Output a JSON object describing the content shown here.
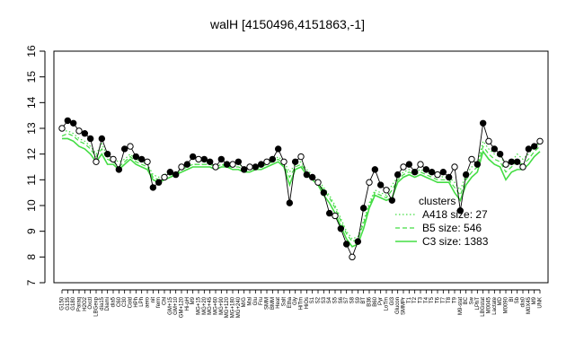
{
  "chart_data": {
    "type": "line",
    "title": "walH [4150496,4151863,-1]",
    "xlabel": "",
    "ylabel": "",
    "ylim": [
      7,
      16
    ],
    "yticks": [
      7,
      8,
      9,
      10,
      11,
      12,
      13,
      14,
      15,
      16
    ],
    "grid": false,
    "legend_placement": "bottom-right",
    "legend_title": "clusters",
    "condition_labels": [
      "G150",
      "G135",
      "G180",
      "Paraq",
      "H2O2",
      "Oxctl",
      "LBGexp",
      "dia15",
      "Diami",
      "dia5",
      "C60",
      "C30",
      "Cold",
      "HPh",
      "LPh",
      "aero",
      "nit",
      "ferm",
      "Chl",
      "GM+15",
      "GM+10",
      "GM+120",
      "Hi-pH",
      "M9",
      "MG+15",
      "MG+20",
      "MG+45",
      "MG+60",
      "MG+90",
      "MG+120",
      "MG+180",
      "MG+240",
      "M/G",
      "Mal",
      "Glu",
      "Fru",
      "SMM",
      "BMM",
      "Heat",
      "Salt",
      "Etha",
      "Gly",
      "HiTm",
      "HiOs",
      "S1",
      "S2",
      "S3",
      "S4",
      "S5",
      "S6",
      "S7",
      "S8",
      "S9",
      "BT",
      "B36",
      "B60",
      "Pyr",
      "LoTm",
      "Gl3",
      "Glucon",
      "SMMPr",
      "T1",
      "T2",
      "T3",
      "T4",
      "T5",
      "T6",
      "T7",
      "T8",
      "T9",
      "M9-stat",
      "BC",
      "Sw",
      "LPhT",
      "LBGstat",
      "M0045",
      "Lactate",
      "MD",
      "M0090",
      "Bl",
      "Sb",
      "dia0",
      "M0X45",
      "M9",
      "UNK"
    ],
    "x": [
      1,
      2,
      3,
      4,
      5,
      6,
      7,
      8,
      9,
      10,
      11,
      12,
      13,
      14,
      15,
      16,
      17,
      18,
      19,
      20,
      21,
      22,
      23,
      24,
      25,
      26,
      27,
      28,
      29,
      30,
      31,
      32,
      33,
      34,
      35,
      36,
      37,
      38,
      39,
      40,
      41,
      42,
      43,
      44,
      45,
      46,
      47,
      48,
      49,
      50,
      51,
      52,
      53,
      54,
      55,
      56,
      57,
      58,
      59,
      60,
      61,
      62,
      63,
      64,
      65,
      66,
      67,
      68,
      69,
      70,
      71,
      72,
      73,
      74,
      75,
      76,
      77,
      78,
      79,
      80,
      81,
      82,
      83,
      84,
      85
    ],
    "series": [
      {
        "name": "A418 size: 27",
        "style": "dotted",
        "color": "#44dd44",
        "values": [
          12.9,
          12.9,
          12.8,
          12.6,
          12.5,
          12.3,
          12.0,
          12.4,
          11.9,
          11.8,
          11.7,
          11.8,
          12.0,
          11.8,
          11.7,
          11.6,
          11.2,
          11.1,
          11.2,
          11.3,
          11.3,
          11.4,
          11.5,
          11.6,
          11.6,
          11.6,
          11.6,
          11.5,
          11.6,
          11.6,
          11.6,
          11.6,
          11.5,
          11.5,
          11.5,
          11.6,
          11.6,
          11.7,
          11.9,
          11.7,
          11.3,
          11.6,
          11.7,
          11.4,
          11.2,
          11.0,
          10.7,
          10.4,
          10.0,
          9.5,
          9.0,
          8.7,
          8.8,
          9.4,
          10.1,
          10.6,
          10.5,
          10.4,
          10.8,
          11.1,
          11.3,
          11.4,
          11.3,
          11.4,
          11.3,
          11.2,
          11.2,
          11.1,
          11.1,
          10.9,
          10.6,
          11.2,
          11.5,
          11.6,
          12.5,
          12.2,
          12.0,
          11.9,
          11.6,
          11.7,
          12.0,
          11.8,
          12.0,
          12.3,
          12.4
        ]
      },
      {
        "name": "B5 size: 546",
        "style": "dashed",
        "color": "#44dd44",
        "values": [
          12.7,
          12.8,
          12.7,
          12.5,
          12.4,
          12.2,
          11.9,
          12.2,
          11.8,
          11.7,
          11.5,
          11.7,
          11.9,
          11.7,
          11.6,
          11.5,
          11.1,
          11.0,
          11.1,
          11.2,
          11.2,
          11.4,
          11.5,
          11.6,
          11.6,
          11.6,
          11.6,
          11.5,
          11.6,
          11.5,
          11.5,
          11.5,
          11.4,
          11.4,
          11.5,
          11.5,
          11.6,
          11.7,
          11.8,
          11.6,
          11.1,
          11.5,
          11.6,
          11.3,
          11.1,
          10.9,
          10.6,
          10.3,
          9.9,
          9.4,
          8.9,
          8.6,
          8.7,
          9.3,
          10.0,
          10.5,
          10.4,
          10.3,
          10.6,
          11.0,
          11.2,
          11.3,
          11.2,
          11.3,
          11.2,
          11.1,
          11.0,
          11.0,
          11.0,
          10.7,
          10.4,
          11.0,
          11.3,
          11.5,
          12.3,
          12.0,
          11.8,
          11.7,
          11.3,
          11.5,
          11.7,
          11.6,
          11.8,
          12.1,
          12.3
        ]
      },
      {
        "name": "C3 size: 1383",
        "style": "solid",
        "color": "#44dd44",
        "values": [
          12.6,
          12.6,
          12.5,
          12.3,
          12.2,
          12.0,
          11.7,
          12.0,
          11.6,
          11.6,
          11.4,
          11.6,
          11.8,
          11.6,
          11.5,
          11.4,
          11.0,
          10.9,
          11.0,
          11.1,
          11.2,
          11.3,
          11.4,
          11.5,
          11.5,
          11.5,
          11.5,
          11.4,
          11.5,
          11.5,
          11.4,
          11.4,
          11.3,
          11.3,
          11.4,
          11.4,
          11.5,
          11.6,
          11.7,
          11.5,
          10.8,
          11.4,
          11.5,
          11.2,
          11.0,
          10.8,
          10.4,
          10.1,
          9.7,
          9.2,
          8.7,
          8.4,
          8.5,
          9.1,
          9.9,
          10.4,
          10.3,
          10.2,
          10.3,
          10.9,
          11.1,
          11.2,
          11.1,
          11.2,
          11.1,
          11.0,
          10.9,
          10.9,
          10.9,
          10.5,
          10.2,
          10.8,
          11.1,
          11.3,
          12.1,
          11.8,
          11.6,
          11.5,
          11.0,
          11.3,
          11.4,
          11.4,
          11.6,
          11.9,
          12.1
        ]
      },
      {
        "name": "walH",
        "style": "points",
        "color": "#000000",
        "values": [
          13.0,
          13.3,
          13.2,
          12.9,
          12.8,
          12.6,
          11.7,
          12.6,
          12.0,
          11.8,
          11.4,
          12.2,
          12.3,
          11.9,
          11.8,
          11.7,
          10.7,
          10.9,
          11.1,
          11.3,
          11.2,
          11.5,
          11.6,
          11.9,
          11.8,
          11.8,
          11.7,
          11.5,
          11.8,
          11.6,
          11.6,
          11.7,
          11.4,
          11.5,
          11.5,
          11.6,
          11.7,
          11.8,
          12.2,
          11.7,
          10.1,
          11.7,
          11.9,
          11.2,
          11.1,
          10.9,
          10.5,
          9.7,
          9.6,
          9.1,
          8.5,
          8.0,
          8.6,
          9.9,
          10.9,
          11.4,
          10.8,
          10.6,
          10.2,
          11.2,
          11.5,
          11.6,
          11.3,
          11.6,
          11.4,
          11.3,
          11.2,
          11.3,
          11.1,
          11.5,
          9.8,
          11.2,
          11.8,
          11.6,
          13.2,
          12.5,
          12.2,
          12.0,
          11.6,
          11.7,
          11.7,
          11.5,
          12.2,
          12.3,
          12.5
        ]
      }
    ]
  }
}
